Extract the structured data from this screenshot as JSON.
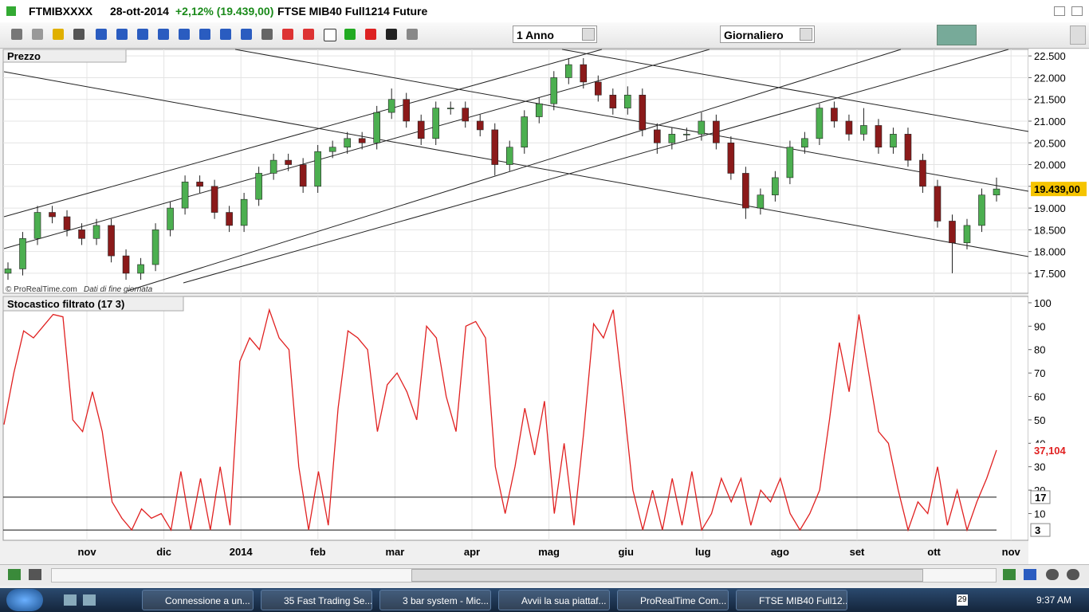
{
  "window": {
    "symbol": "FTMIBXXXX",
    "date": "28-ott-2014",
    "change": "+2,12% (19.439,00)",
    "name": "FTSE MIB40 Full1214 Future"
  },
  "toolbar": {
    "period": "1 Anno",
    "interval": "Giornaliero"
  },
  "price_panel": {
    "type": "candlestick",
    "title": "Prezzo",
    "watermark": "© ProRealTime.com",
    "watermark_note": "Dati di fine giornata",
    "last_label": "19.439,00",
    "ylim": [
      17040,
      22650
    ],
    "yticks": [
      {
        "value": 17500,
        "label": "17.500"
      },
      {
        "value": 18000,
        "label": "18.000"
      },
      {
        "value": 18500,
        "label": "18.500"
      },
      {
        "value": 19000,
        "label": "19.000"
      },
      {
        "value": 19500,
        "label": "19.500"
      },
      {
        "value": 20000,
        "label": "20.000"
      },
      {
        "value": 20500,
        "label": "20.500"
      },
      {
        "value": 21000,
        "label": "21.000"
      },
      {
        "value": 21500,
        "label": "21.500"
      },
      {
        "value": 22000,
        "label": "22.000"
      },
      {
        "value": 22500,
        "label": "22.500"
      }
    ],
    "up_color": "#4caf50",
    "down_color": "#8b1a1a",
    "open": [
      17500,
      17600,
      18300,
      18900,
      18800,
      18500,
      18300,
      18600,
      17900,
      17500,
      17700,
      18500,
      19000,
      19600,
      19500,
      18900,
      18600,
      19200,
      19800,
      20100,
      20000,
      19500,
      20300,
      20400,
      20600,
      20500,
      21200,
      21500,
      21000,
      20600,
      21300,
      21300,
      21000,
      20800,
      20000,
      20400,
      21100,
      21400,
      22000,
      22300,
      21900,
      21600,
      21300,
      21600,
      20800,
      20500,
      20700,
      20700,
      21000,
      20500,
      19800,
      19000,
      19300,
      19700,
      20400,
      20600,
      21300,
      21000,
      20700,
      20900,
      20400,
      20700,
      20100,
      19500,
      18700,
      18200,
      18600,
      19300
    ],
    "high": [
      17750,
      18450,
      19050,
      19050,
      18950,
      18650,
      18750,
      18750,
      18050,
      17850,
      18650,
      19150,
      19750,
      19750,
      19650,
      19050,
      19350,
      19950,
      20250,
      20250,
      20150,
      20450,
      20550,
      20750,
      20750,
      21350,
      21750,
      21650,
      21150,
      21450,
      21450,
      21450,
      21150,
      20950,
      20550,
      21250,
      21550,
      22150,
      22450,
      22450,
      22050,
      21750,
      21800,
      21750,
      20950,
      20850,
      20850,
      21200,
      21150,
      20650,
      19950,
      19450,
      19850,
      20550,
      20750,
      21400,
      21450,
      21150,
      21300,
      21050,
      20850,
      20850,
      20250,
      19650,
      18850,
      18750,
      19450,
      19700
    ],
    "low": [
      17350,
      17450,
      18150,
      18650,
      18350,
      18150,
      18150,
      17750,
      17350,
      17350,
      17550,
      18350,
      18850,
      19350,
      18750,
      18450,
      18450,
      19050,
      19650,
      19850,
      19350,
      19350,
      20150,
      20250,
      20350,
      20350,
      21050,
      20850,
      20450,
      20450,
      21150,
      20850,
      20650,
      19750,
      19850,
      20250,
      20950,
      21250,
      21850,
      21750,
      21450,
      21150,
      21150,
      20650,
      20250,
      20350,
      20550,
      20550,
      20350,
      19650,
      18750,
      18850,
      19150,
      19550,
      20250,
      20450,
      20850,
      20550,
      20550,
      20250,
      20250,
      19950,
      19350,
      18550,
      17500,
      18050,
      18450,
      19150
    ],
    "close": [
      17600,
      18300,
      18900,
      18800,
      18500,
      18300,
      18600,
      17900,
      17500,
      17700,
      18500,
      19000,
      19600,
      19500,
      18900,
      18600,
      19200,
      19800,
      20100,
      20000,
      19500,
      20300,
      20400,
      20600,
      20500,
      21200,
      21500,
      21000,
      20600,
      21300,
      21300,
      21000,
      20800,
      20000,
      20400,
      21100,
      21400,
      22000,
      22300,
      21900,
      21600,
      21300,
      21600,
      20800,
      20500,
      20700,
      20700,
      21000,
      20500,
      19800,
      19000,
      19300,
      19700,
      20400,
      20600,
      21300,
      21000,
      20700,
      20900,
      20400,
      20700,
      20100,
      19500,
      18700,
      18200,
      18600,
      19300,
      19439
    ]
  },
  "stochastic_panel": {
    "type": "line",
    "title": "Stocastico filtrato (17 3)",
    "last_label": "37,104",
    "color": "#e02020",
    "ylim": [
      -1.4,
      102.7
    ],
    "yticks": [
      10,
      20,
      30,
      40,
      50,
      60,
      70,
      80,
      90,
      100
    ],
    "levels": [
      17,
      3
    ],
    "values": [
      48,
      70,
      88,
      85,
      90,
      95,
      94,
      50,
      45,
      62,
      45,
      15,
      8,
      3,
      12,
      8,
      10,
      3,
      28,
      3,
      25,
      3,
      30,
      5,
      75,
      85,
      80,
      97,
      85,
      80,
      30,
      3,
      28,
      5,
      55,
      88,
      85,
      80,
      45,
      65,
      70,
      62,
      50,
      90,
      85,
      60,
      45,
      90,
      92,
      85,
      30,
      10,
      30,
      55,
      35,
      58,
      10,
      40,
      5,
      45,
      91,
      85,
      97,
      60,
      20,
      3,
      20,
      3,
      25,
      5,
      28,
      3,
      10,
      25,
      15,
      25,
      5,
      20,
      15,
      25,
      10,
      3,
      10,
      20,
      50,
      83,
      62,
      95,
      70,
      45,
      40,
      20,
      3,
      15,
      10,
      30,
      5,
      20,
      3,
      15,
      25,
      37.104
    ]
  },
  "x_axis": {
    "labels": [
      "nov",
      "dic",
      "2014",
      "feb",
      "mar",
      "apr",
      "mag",
      "giu",
      "lug",
      "ago",
      "set",
      "ott",
      "nov"
    ]
  },
  "taskbar": {
    "items": [
      "Connessione a un...",
      "35 Fast Trading Se...",
      "3 bar system - Mic...",
      "Avvii la sua piattaf...",
      "ProRealTime Com...",
      "FTSE MIB40 Full12..."
    ],
    "badge": "29",
    "clock": "9:37 AM"
  }
}
